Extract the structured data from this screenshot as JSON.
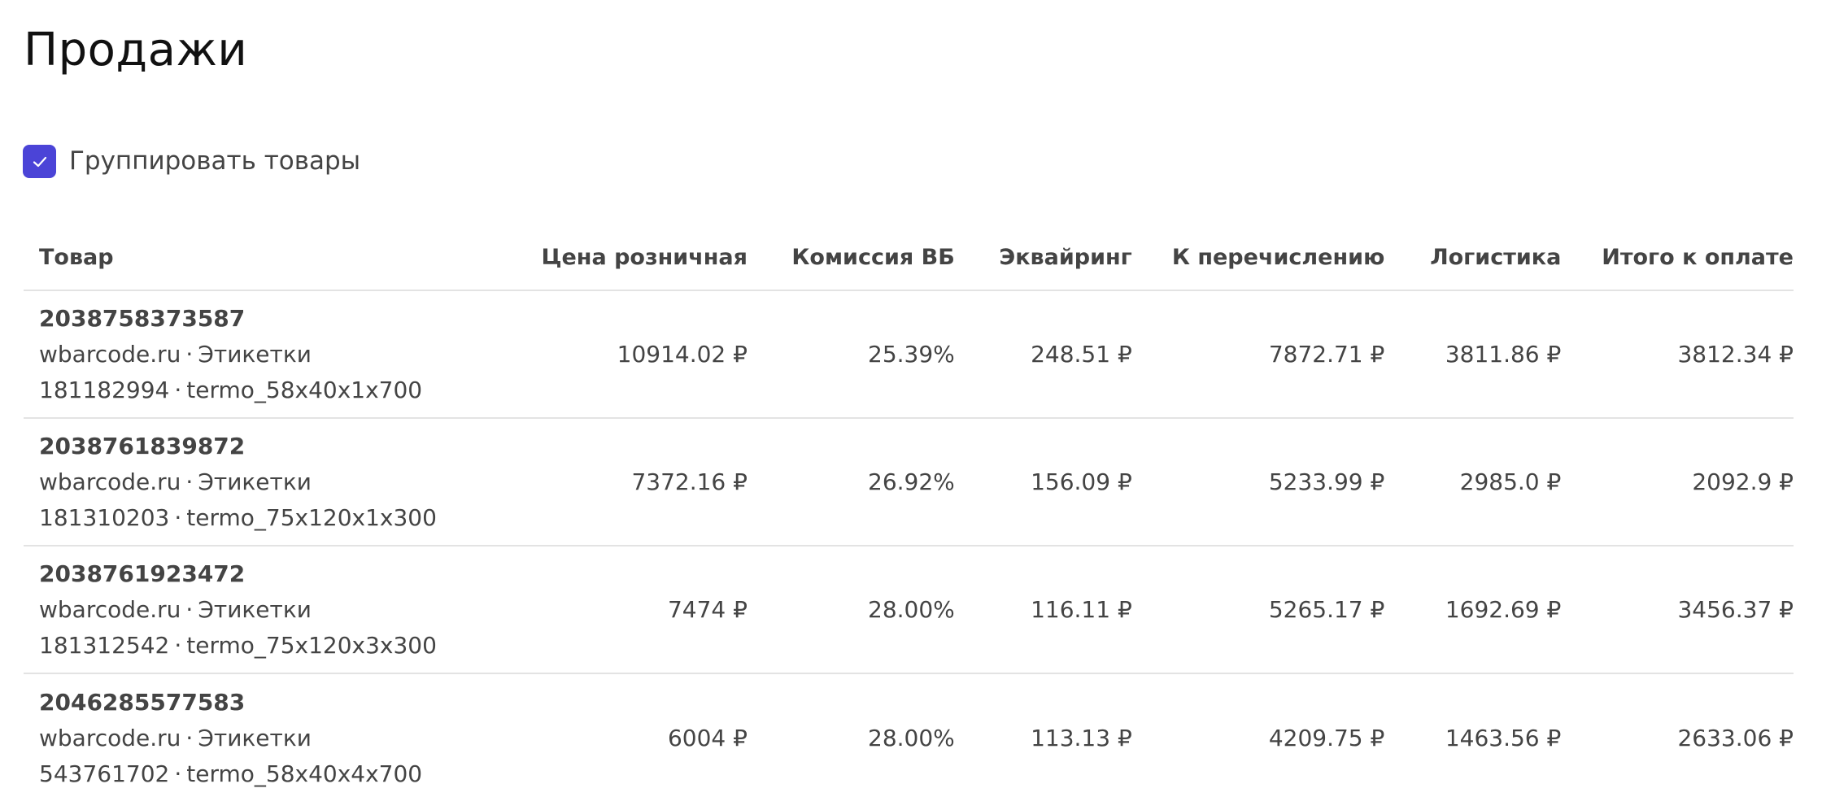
{
  "page": {
    "title": "Продажи"
  },
  "group_toggle": {
    "label": "Группировать товары",
    "checked": true
  },
  "table": {
    "headers": [
      "Товар",
      "Цена розничная",
      "Комиссия ВБ",
      "Эквайринг",
      "К перечислению",
      "Логистика",
      "Итого к оплате"
    ],
    "rows": [
      {
        "sku": "2038758373587",
        "brand": "wbarcode.ru",
        "category": "Этикетки",
        "article": "181182994",
        "variant": "termo_58x40x1x700",
        "price": "10914.02 ₽",
        "commission": "25.39%",
        "acquiring": "248.51 ₽",
        "transfer": "7872.71 ₽",
        "logistics": "3811.86 ₽",
        "total": "3812.34 ₽"
      },
      {
        "sku": "2038761839872",
        "brand": "wbarcode.ru",
        "category": "Этикетки",
        "article": "181310203",
        "variant": "termo_75x120x1x300",
        "price": "7372.16 ₽",
        "commission": "26.92%",
        "acquiring": "156.09 ₽",
        "transfer": "5233.99 ₽",
        "logistics": "2985.0 ₽",
        "total": "2092.9 ₽"
      },
      {
        "sku": "2038761923472",
        "brand": "wbarcode.ru",
        "category": "Этикетки",
        "article": "181312542",
        "variant": "termo_75x120x3x300",
        "price": "7474 ₽",
        "commission": "28.00%",
        "acquiring": "116.11 ₽",
        "transfer": "5265.17 ₽",
        "logistics": "1692.69 ₽",
        "total": "3456.37 ₽"
      },
      {
        "sku": "2046285577583",
        "brand": "wbarcode.ru",
        "category": "Этикетки",
        "article": "543761702",
        "variant": "termo_58x40x4x700",
        "price": "6004 ₽",
        "commission": "28.00%",
        "acquiring": "113.13 ₽",
        "transfer": "4209.75 ₽",
        "logistics": "1463.56 ₽",
        "total": "2633.06 ₽"
      }
    ]
  },
  "colors": {
    "accent": "#4b44d7",
    "divider": "#e3e3e3",
    "text": "#444444"
  },
  "icons": {
    "checkbox": "check-icon"
  }
}
